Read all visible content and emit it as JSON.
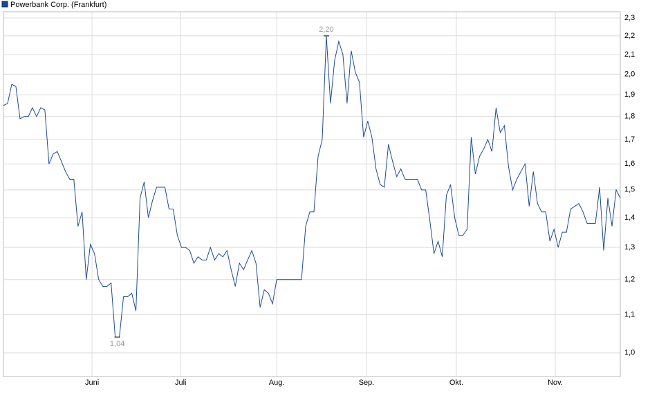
{
  "chart_data": {
    "type": "line",
    "title": "Powerbank Corp. (Frankfurt)",
    "log_y": true,
    "grid": true,
    "color": "#1a4a9c",
    "xlim": [
      0,
      149
    ],
    "xticks": [
      {
        "value": 21.4,
        "label": "Juni"
      },
      {
        "value": 42.8,
        "label": "Juli"
      },
      {
        "value": 66,
        "label": "Aug."
      },
      {
        "value": 87.7,
        "label": "Sep."
      },
      {
        "value": 109.4,
        "label": "Okt."
      },
      {
        "value": 133.3,
        "label": "Nov."
      }
    ],
    "ylim": [
      0.943,
      2.336
    ],
    "yticks": [
      {
        "value": 1.0,
        "label": "1,0"
      },
      {
        "value": 1.1,
        "label": "1,1"
      },
      {
        "value": 1.2,
        "label": "1,2"
      },
      {
        "value": 1.3,
        "label": "1,3"
      },
      {
        "value": 1.4,
        "label": "1,4"
      },
      {
        "value": 1.5,
        "label": "1,5"
      },
      {
        "value": 1.6,
        "label": "1,6"
      },
      {
        "value": 1.7,
        "label": "1,7"
      },
      {
        "value": 1.8,
        "label": "1,8"
      },
      {
        "value": 1.9,
        "label": "1,9"
      },
      {
        "value": 2.0,
        "label": "2,0"
      },
      {
        "value": 2.1,
        "label": "2,1"
      },
      {
        "value": 2.2,
        "label": "2,2"
      },
      {
        "value": 2.3,
        "label": "2,3"
      }
    ],
    "series": [
      {
        "name": "Powerbank Corp. (Frankfurt)",
        "color": "#1a4a9c",
        "values": [
          1.85,
          1.86,
          1.95,
          1.94,
          1.79,
          1.8,
          1.8,
          1.84,
          1.8,
          1.84,
          1.83,
          1.6,
          1.64,
          1.65,
          1.61,
          1.57,
          1.54,
          1.54,
          1.37,
          1.42,
          1.2,
          1.31,
          1.28,
          1.2,
          1.18,
          1.18,
          1.19,
          1.04,
          1.04,
          1.15,
          1.15,
          1.16,
          1.11,
          1.47,
          1.53,
          1.4,
          1.46,
          1.51,
          1.51,
          1.51,
          1.43,
          1.43,
          1.34,
          1.3,
          1.3,
          1.29,
          1.25,
          1.27,
          1.26,
          1.26,
          1.3,
          1.26,
          1.28,
          1.27,
          1.29,
          1.23,
          1.18,
          1.25,
          1.23,
          1.26,
          1.29,
          1.25,
          1.12,
          1.17,
          1.16,
          1.13,
          1.2,
          1.2,
          1.2,
          1.2,
          1.2,
          1.2,
          1.2,
          1.37,
          1.42,
          1.42,
          1.63,
          1.7,
          2.2,
          1.86,
          2.07,
          2.17,
          2.1,
          1.86,
          2.12,
          2.01,
          1.96,
          1.71,
          1.78,
          1.71,
          1.58,
          1.52,
          1.51,
          1.68,
          1.61,
          1.55,
          1.58,
          1.54,
          1.54,
          1.54,
          1.54,
          1.5,
          1.5,
          1.39,
          1.28,
          1.32,
          1.27,
          1.48,
          1.52,
          1.4,
          1.34,
          1.34,
          1.36,
          1.71,
          1.56,
          1.63,
          1.66,
          1.7,
          1.65,
          1.84,
          1.73,
          1.76,
          1.59,
          1.5,
          1.54,
          1.57,
          1.6,
          1.44,
          1.57,
          1.45,
          1.42,
          1.42,
          1.32,
          1.36,
          1.3,
          1.35,
          1.35,
          1.43,
          1.44,
          1.45,
          1.42,
          1.38,
          1.38,
          1.38,
          1.51,
          1.29,
          1.47,
          1.37,
          1.5,
          1.47
        ]
      }
    ],
    "annotations": [
      {
        "label": "2,20",
        "value": 2.2,
        "index": 78,
        "position": "above"
      },
      {
        "label": "1,04",
        "value": 1.04,
        "index": 27.5,
        "position": "below"
      }
    ]
  }
}
